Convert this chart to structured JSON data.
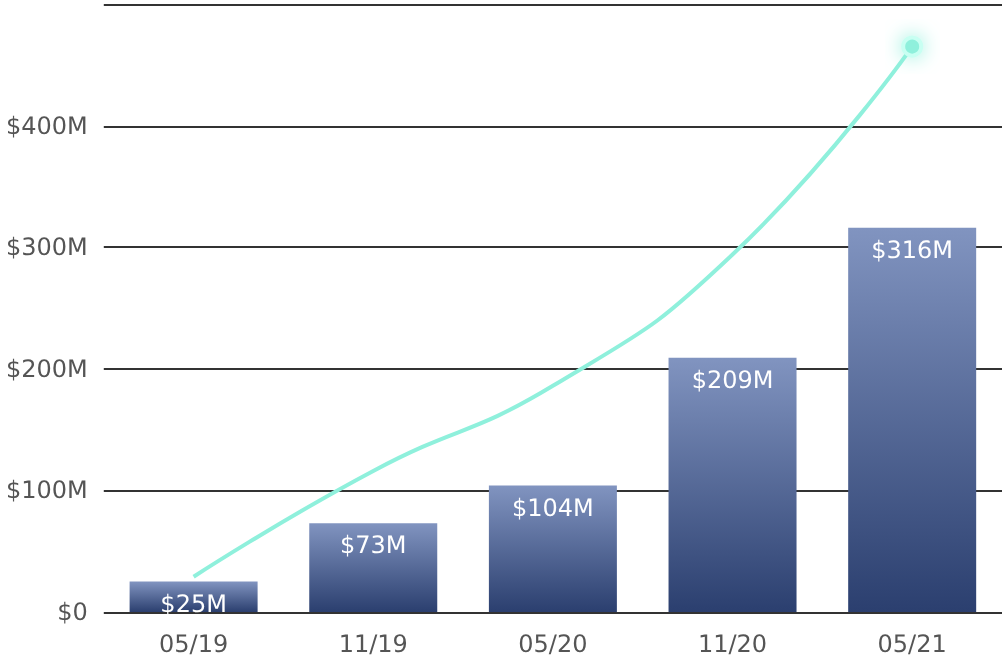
{
  "chart_data": {
    "type": "bar",
    "categories": [
      "05/19",
      "11/19",
      "05/20",
      "11/20",
      "05/21"
    ],
    "series": [
      {
        "color": "#3d5a9e",
        "values": [
          25,
          73,
          104,
          209,
          316
        ],
        "value_labels": [
          "$25M",
          "$73M",
          "$104M",
          "$209M",
          "$316M"
        ]
      },
      {
        "type": "line",
        "color": "#8ff0dc",
        "values": [
          29,
          116,
          186,
          294,
          465
        ]
      }
    ],
    "ylim": [
      0,
      500
    ],
    "yticks": [
      {
        "value": 0,
        "label": "$0"
      },
      {
        "value": 100,
        "label": "$100M"
      },
      {
        "value": 200,
        "label": "$200M"
      },
      {
        "value": 300,
        "label": "$300M"
      },
      {
        "value": 400,
        "label": "$400M"
      },
      {
        "value": 500,
        "label": null
      }
    ],
    "grid": "y"
  }
}
